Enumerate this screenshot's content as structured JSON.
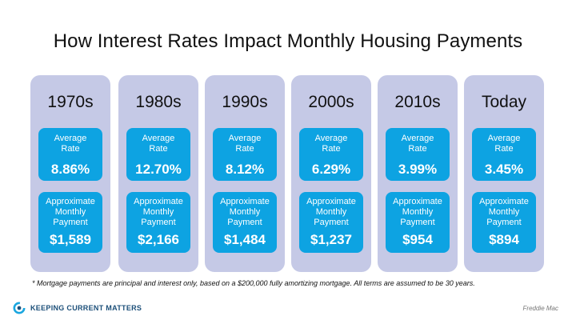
{
  "title": "How Interest Rates Impact Monthly Housing Payments",
  "rate_label_line1": "Average",
  "rate_label_line2": "Rate",
  "payment_label_line1": "Approximate",
  "payment_label_line2": "Monthly",
  "payment_label_line3": "Payment",
  "columns": [
    {
      "decade": "1970s",
      "rate": "8.86%",
      "payment": "$1,589"
    },
    {
      "decade": "1980s",
      "rate": "12.70%",
      "payment": "$2,166"
    },
    {
      "decade": "1990s",
      "rate": "8.12%",
      "payment": "$1,484"
    },
    {
      "decade": "2000s",
      "rate": "6.29%",
      "payment": "$1,237"
    },
    {
      "decade": "2010s",
      "rate": "3.99%",
      "payment": "$954"
    },
    {
      "decade": "Today",
      "rate": "3.45%",
      "payment": "$894"
    }
  ],
  "footnote": "* Mortgage payments are principal and interest only, based on a $200,000 fully amortizing mortgage. All terms are assumed to be 30 years.",
  "logo_text": "KEEPING CURRENT MATTERS",
  "source": "Freddie Mac",
  "colors": {
    "column_bg": "#c5c9e6",
    "box_bg": "#0da3e2",
    "logo": "#1c4f79"
  }
}
